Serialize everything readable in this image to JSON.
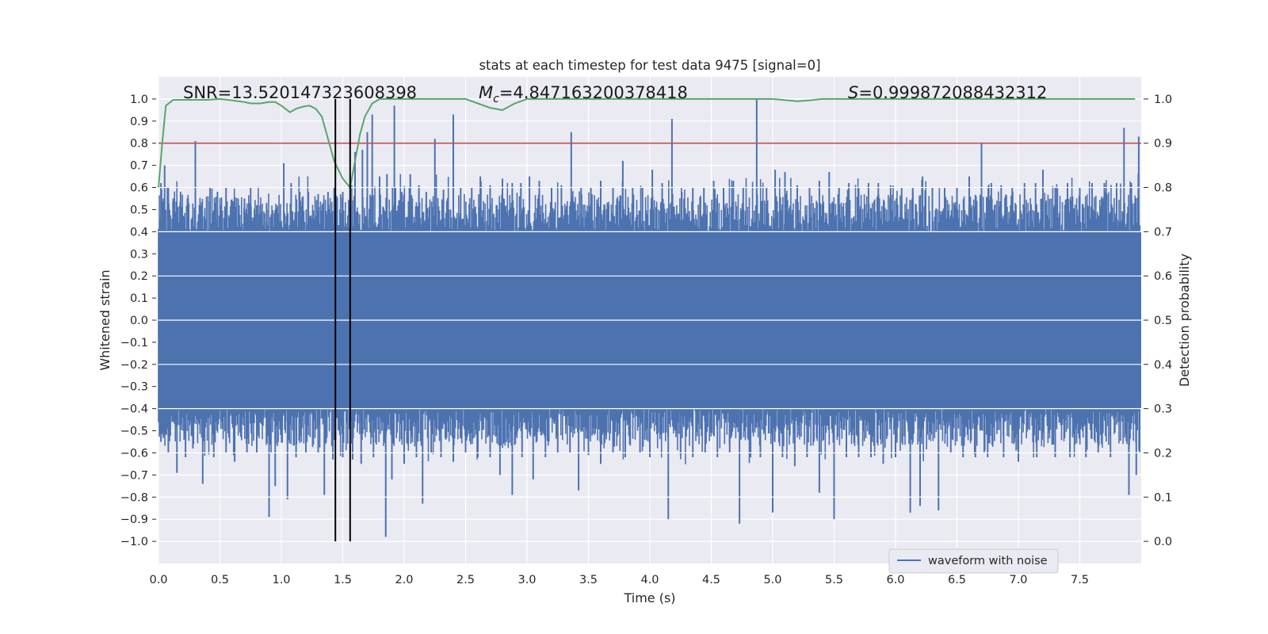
{
  "chart_data": {
    "type": "line",
    "title": "stats at each timestep for test data 9475 [signal=0]",
    "xlabel": "Time (s)",
    "ylabel": "Whitened strain",
    "y2label": "Detection probability",
    "xlim": [
      0.0,
      8.0
    ],
    "ylim": [
      -1.1,
      1.1
    ],
    "y2lim": [
      -0.05,
      1.05
    ],
    "xticks": [
      "0.0",
      "0.5",
      "1.0",
      "1.5",
      "2.0",
      "2.5",
      "3.0",
      "3.5",
      "4.0",
      "4.5",
      "5.0",
      "5.5",
      "6.0",
      "6.5",
      "7.0",
      "7.5"
    ],
    "yticks": [
      "1.0",
      "0.9",
      "0.8",
      "0.7",
      "0.6",
      "0.5",
      "0.4",
      "0.3",
      "0.2",
      "0.1",
      "0.0",
      "−0.1",
      "−0.2",
      "−0.3",
      "−0.4",
      "−0.5",
      "−0.6",
      "−0.7",
      "−0.8",
      "−0.9",
      "−1.0"
    ],
    "y2ticks": [
      "1.0",
      "0.9",
      "0.8",
      "0.7",
      "0.6",
      "0.5",
      "0.4",
      "0.3",
      "0.2",
      "0.1",
      "0.0"
    ],
    "grid": true,
    "annotations": {
      "snr": "SNR=13.520147323608398",
      "mc_symbol": "M",
      "mc_sub": "c",
      "mc_value": "=4.847163200378418",
      "s_symbol": "S",
      "s_value": "=0.999872088432312"
    },
    "legend": {
      "location": "lower right",
      "entries": [
        "waveform with noise"
      ]
    },
    "threshold": {
      "axis": "right",
      "value": 0.9,
      "color": "#c44e52"
    },
    "vertical_lines": [
      1.44,
      1.56
    ],
    "waveform": {
      "name": "waveform with noise",
      "color": "#4c72b0",
      "core_envelope": 0.4,
      "peaks_up": [
        [
          0.02,
          0.62
        ],
        [
          0.05,
          0.7
        ],
        [
          0.08,
          0.6
        ],
        [
          0.12,
          0.55
        ],
        [
          0.18,
          0.58
        ],
        [
          0.24,
          0.55
        ],
        [
          0.3,
          0.81
        ],
        [
          0.35,
          0.52
        ],
        [
          0.42,
          0.6
        ],
        [
          0.48,
          0.58
        ],
        [
          0.55,
          0.6
        ],
        [
          0.62,
          0.55
        ],
        [
          0.7,
          0.55
        ],
        [
          0.75,
          0.6
        ],
        [
          0.8,
          0.52
        ],
        [
          0.88,
          0.53
        ],
        [
          0.95,
          0.5
        ],
        [
          1.02,
          0.71
        ],
        [
          1.08,
          0.62
        ],
        [
          1.15,
          0.58
        ],
        [
          1.22,
          0.58
        ],
        [
          1.3,
          0.57
        ],
        [
          1.38,
          0.58
        ],
        [
          1.43,
          0.6
        ],
        [
          1.5,
          0.58
        ],
        [
          1.6,
          0.76
        ],
        [
          1.66,
          0.77
        ],
        [
          1.7,
          0.85
        ],
        [
          1.74,
          0.93
        ],
        [
          1.8,
          0.65
        ],
        [
          1.86,
          0.66
        ],
        [
          1.92,
          0.97
        ],
        [
          1.98,
          0.58
        ],
        [
          2.05,
          0.66
        ],
        [
          2.12,
          0.61
        ],
        [
          2.18,
          0.58
        ],
        [
          2.25,
          0.82
        ],
        [
          2.32,
          0.59
        ],
        [
          2.4,
          0.93
        ],
        [
          2.46,
          0.6
        ],
        [
          2.55,
          0.6
        ],
        [
          2.62,
          0.65
        ],
        [
          2.7,
          0.61
        ],
        [
          2.8,
          0.64
        ],
        [
          2.88,
          0.62
        ],
        [
          2.95,
          0.62
        ],
        [
          3.02,
          0.65
        ],
        [
          3.1,
          0.63
        ],
        [
          3.2,
          0.6
        ],
        [
          3.28,
          0.61
        ],
        [
          3.36,
          0.85
        ],
        [
          3.44,
          0.6
        ],
        [
          3.52,
          0.6
        ],
        [
          3.6,
          0.63
        ],
        [
          3.7,
          0.6
        ],
        [
          3.78,
          0.72
        ],
        [
          3.86,
          0.6
        ],
        [
          3.94,
          0.6
        ],
        [
          4.02,
          0.68
        ],
        [
          4.1,
          0.62
        ],
        [
          4.18,
          0.91
        ],
        [
          4.26,
          0.58
        ],
        [
          4.35,
          0.6
        ],
        [
          4.44,
          0.6
        ],
        [
          4.52,
          0.63
        ],
        [
          4.6,
          0.6
        ],
        [
          4.68,
          0.63
        ],
        [
          4.76,
          0.6
        ],
        [
          4.87,
          1.0
        ],
        [
          4.95,
          0.6
        ],
        [
          5.02,
          0.68
        ],
        [
          5.1,
          0.67
        ],
        [
          5.2,
          0.61
        ],
        [
          5.3,
          0.6
        ],
        [
          5.38,
          0.63
        ],
        [
          5.46,
          0.67
        ],
        [
          5.54,
          0.6
        ],
        [
          5.62,
          0.62
        ],
        [
          5.7,
          0.6
        ],
        [
          5.78,
          0.62
        ],
        [
          5.86,
          0.62
        ],
        [
          5.96,
          0.61
        ],
        [
          6.05,
          0.6
        ],
        [
          6.14,
          0.6
        ],
        [
          6.22,
          0.65
        ],
        [
          6.3,
          0.6
        ],
        [
          6.4,
          0.6
        ],
        [
          6.5,
          0.6
        ],
        [
          6.6,
          0.65
        ],
        [
          6.7,
          0.8
        ],
        [
          6.78,
          0.62
        ],
        [
          6.86,
          0.61
        ],
        [
          6.95,
          0.6
        ],
        [
          7.05,
          0.62
        ],
        [
          7.14,
          0.62
        ],
        [
          7.2,
          0.68
        ],
        [
          7.3,
          0.6
        ],
        [
          7.4,
          0.62
        ],
        [
          7.5,
          0.6
        ],
        [
          7.6,
          0.62
        ],
        [
          7.7,
          0.62
        ],
        [
          7.8,
          0.62
        ],
        [
          7.86,
          0.87
        ],
        [
          7.92,
          0.62
        ],
        [
          7.98,
          0.83
        ]
      ],
      "peaks_down": [
        [
          0.02,
          -0.55
        ],
        [
          0.08,
          -0.6
        ],
        [
          0.15,
          -0.69
        ],
        [
          0.22,
          -0.62
        ],
        [
          0.28,
          -0.58
        ],
        [
          0.36,
          -0.74
        ],
        [
          0.45,
          -0.62
        ],
        [
          0.55,
          -0.6
        ],
        [
          0.62,
          -0.64
        ],
        [
          0.72,
          -0.6
        ],
        [
          0.8,
          -0.6
        ],
        [
          0.9,
          -0.89
        ],
        [
          0.95,
          -0.75
        ],
        [
          1.05,
          -0.81
        ],
        [
          1.12,
          -0.62
        ],
        [
          1.2,
          -0.6
        ],
        [
          1.3,
          -0.6
        ],
        [
          1.35,
          -0.79
        ],
        [
          1.42,
          -0.63
        ],
        [
          1.5,
          -0.62
        ],
        [
          1.58,
          -0.63
        ],
        [
          1.65,
          -0.65
        ],
        [
          1.75,
          -0.62
        ],
        [
          1.85,
          -0.98
        ],
        [
          1.9,
          -0.72
        ],
        [
          2.0,
          -0.65
        ],
        [
          2.1,
          -0.62
        ],
        [
          2.15,
          -0.83
        ],
        [
          2.22,
          -0.6
        ],
        [
          2.3,
          -0.62
        ],
        [
          2.4,
          -0.64
        ],
        [
          2.5,
          -0.6
        ],
        [
          2.6,
          -0.62
        ],
        [
          2.7,
          -0.62
        ],
        [
          2.78,
          -0.7
        ],
        [
          2.88,
          -0.79
        ],
        [
          2.96,
          -0.62
        ],
        [
          3.05,
          -0.72
        ],
        [
          3.15,
          -0.62
        ],
        [
          3.25,
          -0.6
        ],
        [
          3.35,
          -0.6
        ],
        [
          3.42,
          -0.77
        ],
        [
          3.5,
          -0.61
        ],
        [
          3.6,
          -0.65
        ],
        [
          3.7,
          -0.6
        ],
        [
          3.8,
          -0.62
        ],
        [
          3.92,
          -0.6
        ],
        [
          4.0,
          -0.62
        ],
        [
          4.15,
          -0.9
        ],
        [
          4.25,
          -0.61
        ],
        [
          4.35,
          -0.62
        ],
        [
          4.45,
          -0.6
        ],
        [
          4.55,
          -0.62
        ],
        [
          4.65,
          -0.6
        ],
        [
          4.73,
          -0.92
        ],
        [
          4.82,
          -0.62
        ],
        [
          4.9,
          -0.62
        ],
        [
          5.0,
          -0.87
        ],
        [
          5.08,
          -0.62
        ],
        [
          5.18,
          -0.66
        ],
        [
          5.28,
          -0.62
        ],
        [
          5.38,
          -0.78
        ],
        [
          5.5,
          -0.9
        ],
        [
          5.6,
          -0.62
        ],
        [
          5.7,
          -0.62
        ],
        [
          5.8,
          -0.62
        ],
        [
          5.9,
          -0.65
        ],
        [
          6.0,
          -0.62
        ],
        [
          6.12,
          -0.87
        ],
        [
          6.2,
          -0.84
        ],
        [
          6.35,
          -0.86
        ],
        [
          6.45,
          -0.6
        ],
        [
          6.55,
          -0.62
        ],
        [
          6.65,
          -0.62
        ],
        [
          6.75,
          -0.62
        ],
        [
          6.88,
          -0.62
        ],
        [
          7.0,
          -0.64
        ],
        [
          7.15,
          -0.62
        ],
        [
          7.3,
          -0.62
        ],
        [
          7.42,
          -0.62
        ],
        [
          7.55,
          -0.62
        ],
        [
          7.65,
          -0.6
        ],
        [
          7.75,
          -0.62
        ],
        [
          7.9,
          -0.79
        ],
        [
          7.96,
          -0.7
        ]
      ]
    },
    "probability_series": {
      "name": "detection probability",
      "axis": "right",
      "color": "#55a868",
      "x": [
        0.0,
        0.03,
        0.06,
        0.12,
        0.2,
        0.3,
        0.4,
        0.5,
        0.6,
        0.7,
        0.75,
        0.83,
        0.9,
        0.95,
        1.0,
        1.07,
        1.12,
        1.18,
        1.23,
        1.28,
        1.33,
        1.38,
        1.43,
        1.5,
        1.56,
        1.6,
        1.64,
        1.68,
        1.74,
        1.8,
        1.9,
        2.0,
        2.2,
        2.4,
        2.5,
        2.6,
        2.7,
        2.8,
        2.9,
        3.0,
        3.2,
        3.5,
        4.0,
        4.3,
        4.6,
        5.0,
        5.2,
        5.3,
        5.4,
        6.0,
        6.5,
        7.0,
        7.5,
        7.95
      ],
      "y": [
        0.8,
        0.9,
        0.985,
        0.998,
        0.998,
        0.998,
        0.998,
        1.0,
        0.997,
        0.993,
        0.99,
        0.99,
        0.993,
        0.993,
        0.985,
        0.97,
        0.978,
        0.983,
        0.985,
        0.978,
        0.96,
        0.91,
        0.86,
        0.82,
        0.8,
        0.86,
        0.92,
        0.96,
        0.99,
        1.0,
        1.0,
        1.0,
        1.0,
        1.0,
        1.0,
        0.99,
        0.98,
        0.975,
        0.99,
        1.0,
        1.0,
        1.0,
        1.0,
        1.0,
        1.0,
        1.0,
        0.995,
        0.997,
        1.0,
        1.0,
        1.0,
        1.0,
        1.0,
        1.0
      ]
    }
  }
}
